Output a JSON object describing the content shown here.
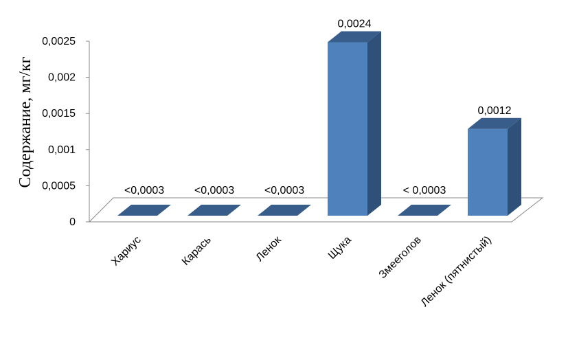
{
  "chart_data": {
    "type": "bar",
    "categories": [
      "Хариус",
      "Карась",
      "Ленок",
      "Щука",
      "Змееголов",
      "Ленок (пятнистый)"
    ],
    "values": [
      0,
      0,
      0,
      0.0024,
      0,
      0.0012
    ],
    "data_labels": [
      "<0,0003",
      "<0,0003",
      "<0,0003",
      "0,0024",
      "< 0,0003",
      "0,0012"
    ],
    "ylabel": "Содержание, мг/кг",
    "ylim": [
      0,
      0.0025
    ],
    "y_ticks": [
      {
        "value": 0,
        "label": "0"
      },
      {
        "value": 0.0005,
        "label": "0,0005"
      },
      {
        "value": 0.001,
        "label": "0,001"
      },
      {
        "value": 0.0015,
        "label": "0,0015"
      },
      {
        "value": 0.002,
        "label": "0,002"
      },
      {
        "value": 0.0025,
        "label": "0,0025"
      }
    ],
    "grid": false,
    "style": "3d-column",
    "colors": {
      "front": "#4F81BD",
      "side": "#2E5079",
      "top": "#385D8A"
    }
  }
}
